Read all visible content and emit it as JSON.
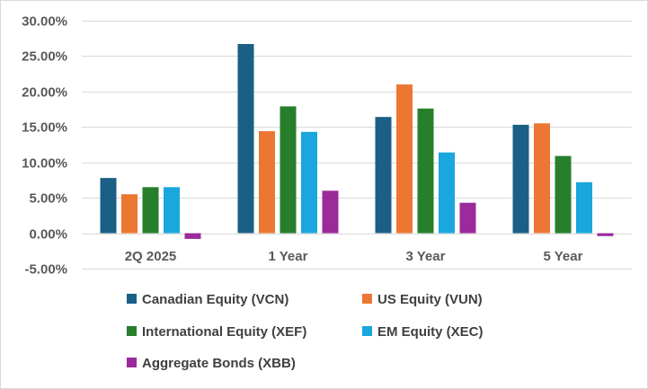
{
  "chart_data": {
    "type": "bar",
    "title": "",
    "xlabel": "",
    "ylabel": "",
    "categories": [
      "2Q 2025",
      "1 Year",
      "3 Year",
      "5 Year"
    ],
    "series": [
      {
        "name": "Canadian Equity (VCN)",
        "color": "#1a5f85",
        "values": [
          7.8,
          26.7,
          16.4,
          15.3
        ]
      },
      {
        "name": "US Equity (VUN)",
        "color": "#ec7732",
        "values": [
          5.5,
          14.4,
          21.0,
          15.5
        ]
      },
      {
        "name": "International Equity (XEF)",
        "color": "#277f2c",
        "values": [
          6.5,
          17.9,
          17.6,
          10.9
        ]
      },
      {
        "name": "EM Equity (XEC)",
        "color": "#19a7dd",
        "values": [
          6.5,
          14.3,
          11.4,
          7.2
        ]
      },
      {
        "name": "Aggregate Bonds (XBB)",
        "color": "#9b2a9a",
        "values": [
          -0.8,
          6.0,
          4.3,
          -0.4
        ]
      }
    ],
    "ylim": [
      -5,
      30
    ],
    "yticks": [
      -5,
      0,
      5,
      10,
      15,
      20,
      25,
      30
    ],
    "ytick_labels": [
      "-5.00%",
      "0.00%",
      "5.00%",
      "10.00%",
      "15.00%",
      "20.00%",
      "25.00%",
      "30.00%"
    ],
    "value_unit": "%",
    "grid": true,
    "legend_position": "bottom"
  }
}
